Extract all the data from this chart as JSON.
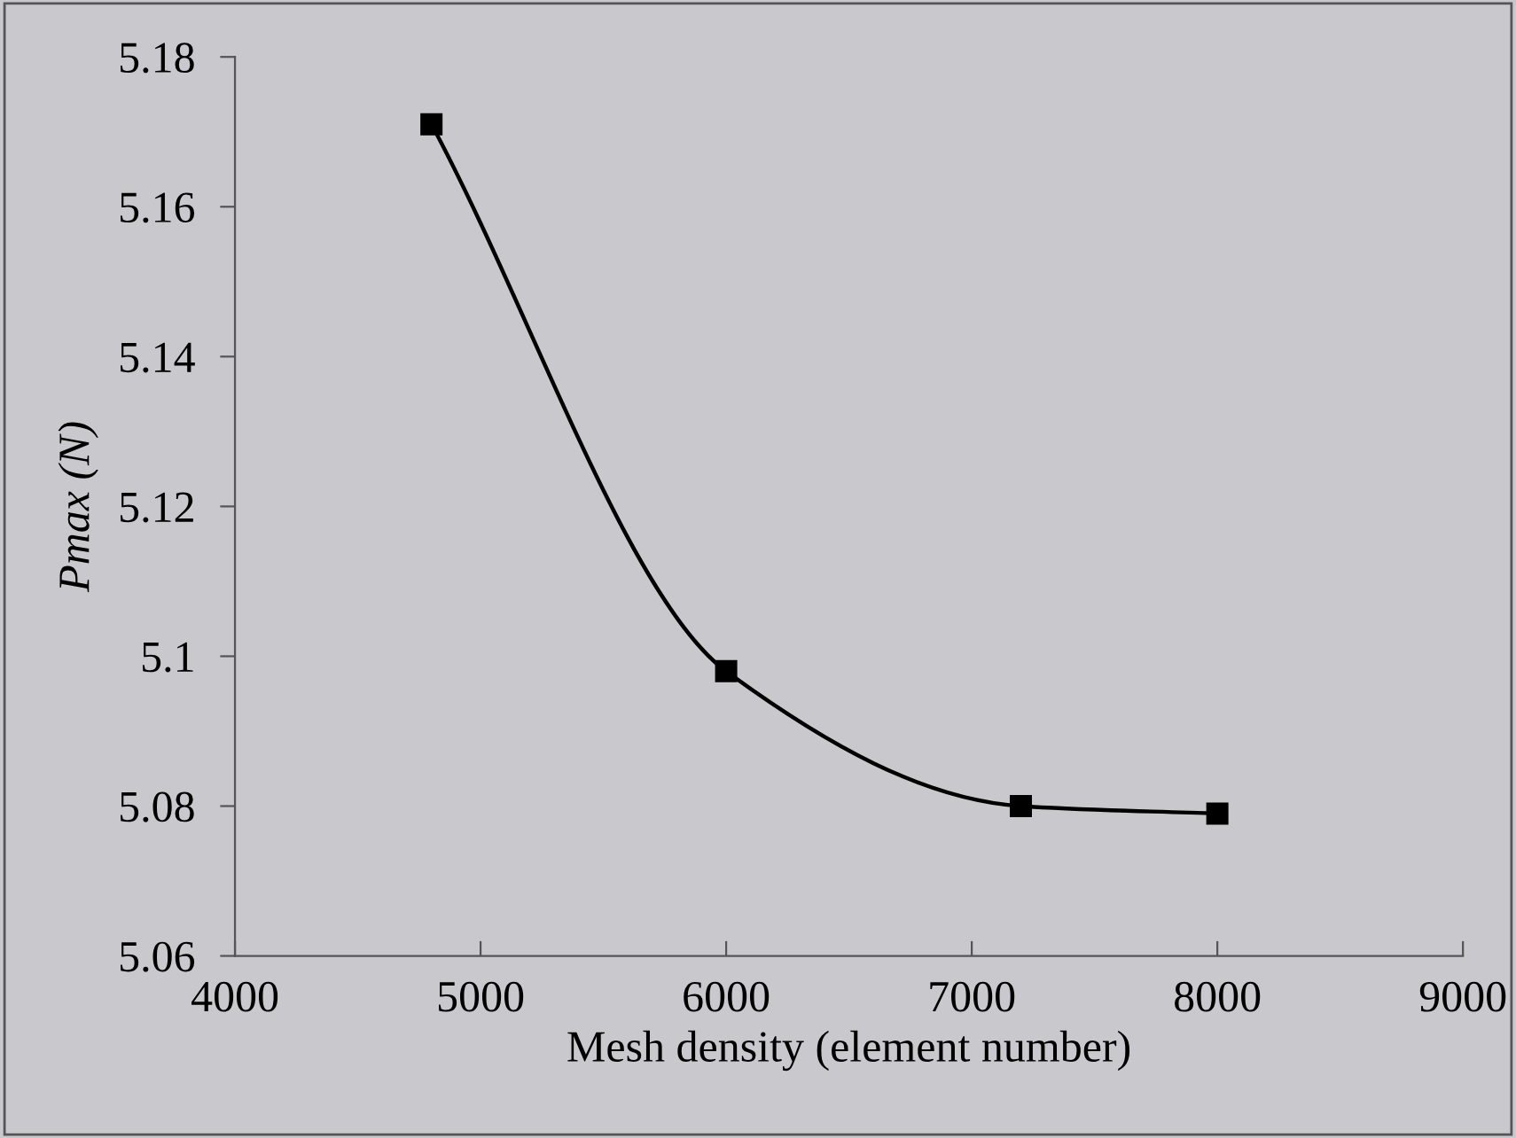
{
  "chart_data": {
    "type": "line",
    "xlabel": "Mesh density (element number)",
    "ylabel": "Pmax (N)",
    "x": [
      4800,
      6000,
      7200,
      8000
    ],
    "series": [
      {
        "color": "#000000",
        "values": [
          5.171,
          5.098,
          5.08,
          5.079
        ]
      }
    ],
    "xlim": [
      4000,
      9000
    ],
    "xticks": [
      4000,
      5000,
      6000,
      7000,
      8000,
      9000
    ],
    "ylim": [
      5.06,
      5.18
    ],
    "yticks": [
      5.06,
      5.08,
      5.1,
      5.12,
      5.14,
      5.16,
      5.18
    ],
    "marker": "square",
    "line_style": "solid",
    "grid": false,
    "legend": false
  }
}
